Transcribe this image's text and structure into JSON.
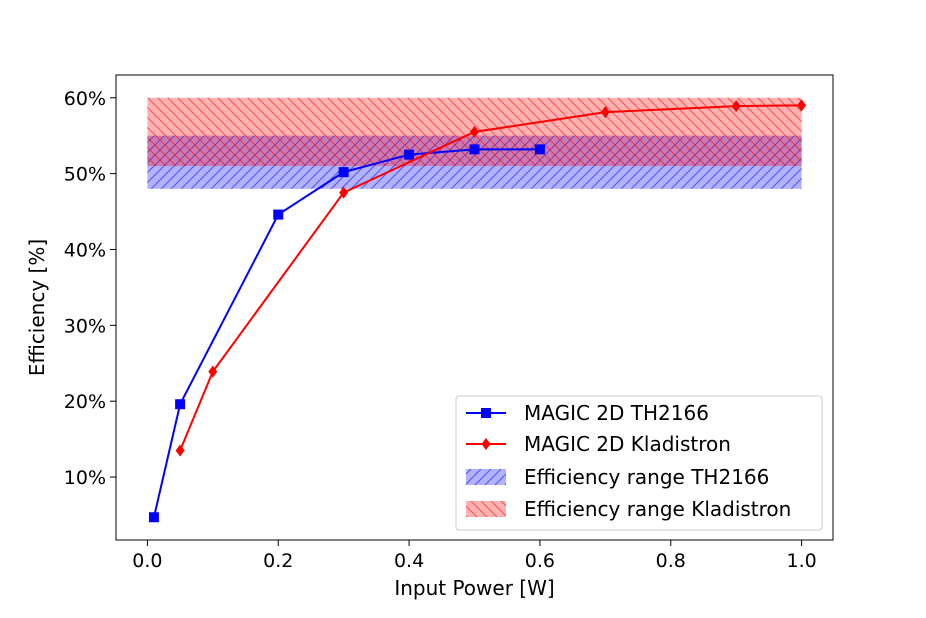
{
  "chart_data": {
    "type": "line",
    "title": "",
    "xlabel": "Input Power [W]",
    "ylabel": "Efficiency [%]",
    "xlim": [
      -0.048,
      1.048
    ],
    "ylim": [
      0.017,
      0.63
    ],
    "x_ticks": [
      0.0,
      0.2,
      0.4,
      0.6,
      0.8,
      1.0
    ],
    "x_tick_labels": [
      "0.0",
      "0.2",
      "0.4",
      "0.6",
      "0.8",
      "1.0"
    ],
    "y_ticks": [
      0.1,
      0.2,
      0.3,
      0.4,
      0.5,
      0.6
    ],
    "y_tick_labels": [
      "10%",
      "20%",
      "30%",
      "40%",
      "50%",
      "60%"
    ],
    "grid": false,
    "legend_position": "bottom-right",
    "series": [
      {
        "name": "MAGIC 2D TH2166",
        "color": "#0000ff",
        "marker": "square",
        "x": [
          0.01,
          0.05,
          0.2,
          0.3,
          0.4,
          0.5,
          0.6
        ],
        "y": [
          0.047,
          0.196,
          0.446,
          0.502,
          0.525,
          0.532,
          0.532
        ]
      },
      {
        "name": "MAGIC 2D Kladistron",
        "color": "#ff0000",
        "marker": "diamond",
        "x": [
          0.05,
          0.1,
          0.3,
          0.5,
          0.7,
          0.9,
          1.0
        ],
        "y": [
          0.135,
          0.239,
          0.475,
          0.555,
          0.581,
          0.589,
          0.59
        ]
      }
    ],
    "bands": [
      {
        "name": "Efficiency range TH2166",
        "color": "#0000ff",
        "hatch": "/",
        "x_range": [
          0.0,
          1.0
        ],
        "y_range": [
          0.48,
          0.55
        ]
      },
      {
        "name": "Efficiency range Kladistron",
        "color": "#ff0000",
        "hatch": "\\",
        "x_range": [
          0.0,
          1.0
        ],
        "y_range": [
          0.51,
          0.6
        ]
      }
    ]
  }
}
